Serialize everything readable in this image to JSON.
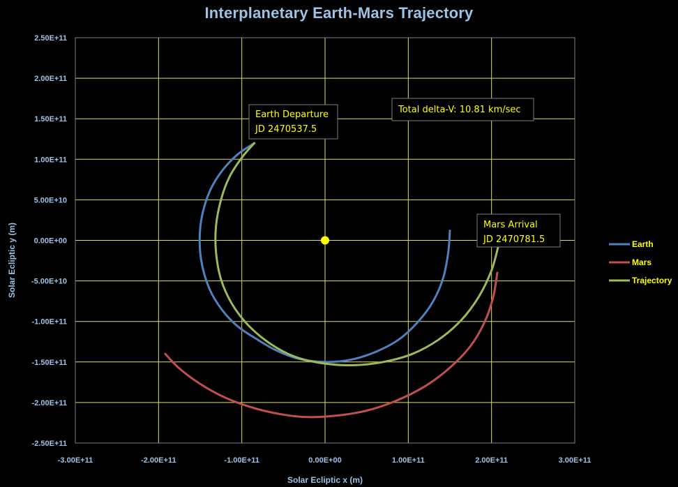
{
  "chart_data": {
    "type": "scatter",
    "title": "Interplanetary Earth-Mars Trajectory",
    "xlabel": "Solar Ecliptic x (m)",
    "ylabel": "Solar Ecliptic y (m)",
    "xlim": [
      -300000000000.0,
      300000000000.0
    ],
    "ylim": [
      -250000000000.0,
      250000000000.0
    ],
    "x_ticks": [
      "-3.00E+11",
      "-2.00E+11",
      "-1.00E+11",
      "0.00E+00",
      "1.00E+11",
      "2.00E+11",
      "3.00E+11"
    ],
    "y_ticks": [
      "2.50E+11",
      "2.00E+11",
      "1.50E+11",
      "1.00E+11",
      "5.00E+10",
      "0.00E+00",
      "-5.00E+10",
      "-1.00E+11",
      "-1.50E+11",
      "-2.00E+11",
      "-2.50E+11"
    ],
    "grid": true,
    "legend_position": "right",
    "sun": {
      "x": 0,
      "y": 0,
      "color": "#ffff00"
    },
    "series": [
      {
        "name": "Earth",
        "color": "#4f81bd",
        "points": [
          [
            -85000000000.0,
            120000000000.0
          ],
          [
            -105000000000.0,
            106000000000.0
          ],
          [
            -122000000000.0,
            88000000000.0
          ],
          [
            -136000000000.0,
            66000000000.0
          ],
          [
            -145000000000.0,
            42000000000.0
          ],
          [
            -150000000000.0,
            15000000000.0
          ],
          [
            -150000000000.0,
            -15000000000.0
          ],
          [
            -145000000000.0,
            -42000000000.0
          ],
          [
            -136000000000.0,
            -66000000000.0
          ],
          [
            -122000000000.0,
            -88000000000.0
          ],
          [
            -105000000000.0,
            -106000000000.0
          ],
          [
            -85000000000.0,
            -120000000000.0
          ],
          [
            -60000000000.0,
            -135000000000.0
          ],
          [
            -32000000000.0,
            -146000000000.0
          ],
          [
            0,
            -150000000000.0
          ],
          [
            32000000000.0,
            -147000000000.0
          ],
          [
            62000000000.0,
            -137000000000.0
          ],
          [
            89000000000.0,
            -122000000000.0
          ],
          [
            112000000000.0,
            -100000000000.0
          ],
          [
            130000000000.0,
            -75000000000.0
          ],
          [
            142000000000.0,
            -46000000000.0
          ],
          [
            148000000000.0,
            -15000000000.0
          ],
          [
            150000000000.0,
            12000000000.0
          ]
        ]
      },
      {
        "name": "Mars",
        "color": "#c0504d",
        "points": [
          [
            -192000000000.0,
            -140000000000.0
          ],
          [
            -175000000000.0,
            -158000000000.0
          ],
          [
            -150000000000.0,
            -177000000000.0
          ],
          [
            -120000000000.0,
            -194000000000.0
          ],
          [
            -85000000000.0,
            -207000000000.0
          ],
          [
            -50000000000.0,
            -215000000000.0
          ],
          [
            -20000000000.0,
            -218000000000.0
          ],
          [
            15000000000.0,
            -216000000000.0
          ],
          [
            50000000000.0,
            -210000000000.0
          ],
          [
            85000000000.0,
            -198000000000.0
          ],
          [
            120000000000.0,
            -180000000000.0
          ],
          [
            150000000000.0,
            -157000000000.0
          ],
          [
            175000000000.0,
            -130000000000.0
          ],
          [
            192000000000.0,
            -100000000000.0
          ],
          [
            202000000000.0,
            -70000000000.0
          ],
          [
            207000000000.0,
            -40000000000.0
          ]
        ]
      },
      {
        "name": "Trajectory",
        "color": "#9bbb59",
        "points": [
          [
            -85000000000.0,
            120000000000.0
          ],
          [
            -100000000000.0,
            102000000000.0
          ],
          [
            -115000000000.0,
            78000000000.0
          ],
          [
            -125000000000.0,
            50000000000.0
          ],
          [
            -131000000000.0,
            18000000000.0
          ],
          [
            -131000000000.0,
            -15000000000.0
          ],
          [
            -125000000000.0,
            -48000000000.0
          ],
          [
            -112000000000.0,
            -78000000000.0
          ],
          [
            -92000000000.0,
            -105000000000.0
          ],
          [
            -65000000000.0,
            -128000000000.0
          ],
          [
            -35000000000.0,
            -144000000000.0
          ],
          [
            0,
            -152000000000.0
          ],
          [
            35000000000.0,
            -154000000000.0
          ],
          [
            70000000000.0,
            -150000000000.0
          ],
          [
            105000000000.0,
            -140000000000.0
          ],
          [
            137000000000.0,
            -122000000000.0
          ],
          [
            164000000000.0,
            -98000000000.0
          ],
          [
            185000000000.0,
            -69000000000.0
          ],
          [
            200000000000.0,
            -37000000000.0
          ],
          [
            208000000000.0,
            -8000000000.0
          ]
        ]
      }
    ],
    "annotations": [
      {
        "id": "earth-departure",
        "lines": [
          "Earth Departure",
          "JD 2470537.5"
        ]
      },
      {
        "id": "delta-v",
        "lines": [
          "Total delta-V: 10.81 km/sec"
        ]
      },
      {
        "id": "mars-arrival",
        "lines": [
          "Mars Arrival",
          "JD 2470781.5"
        ]
      }
    ]
  }
}
